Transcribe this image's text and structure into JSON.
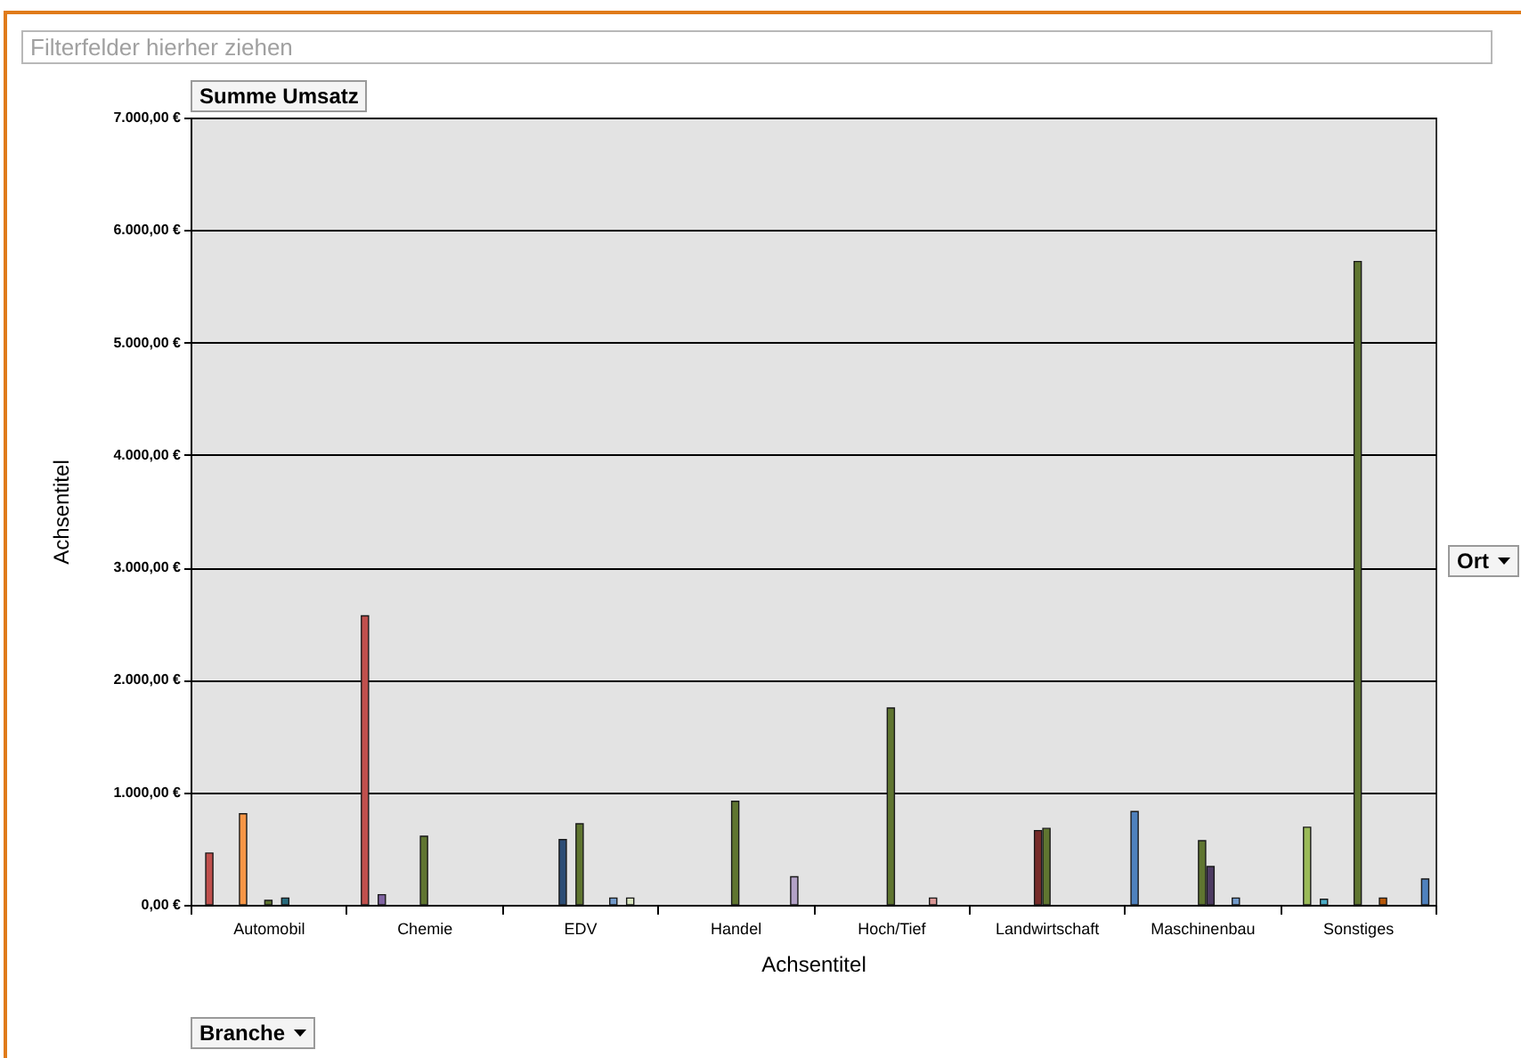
{
  "chart_data": {
    "type": "bar",
    "annotations": [
      "Filterfelder hierher ziehen",
      "Summe Umsatz",
      "Ort",
      "Branche"
    ],
    "xlabel": "Achsentitel",
    "ylabel": "Achsentitel",
    "categories": [
      "Automobil",
      "Chemie",
      "EDV",
      "Handel",
      "Hoch/Tief",
      "Landwirtschaft",
      "Maschinenbau",
      "Sonstiges"
    ],
    "series": [
      {
        "color": "#4f81bd",
        "values": [
          null,
          null,
          null,
          null,
          null,
          null,
          830,
          null
        ]
      },
      {
        "color": "#c0504d",
        "values": [
          460,
          2570,
          null,
          null,
          null,
          null,
          null,
          null
        ]
      },
      {
        "color": "#9bbb59",
        "values": [
          null,
          null,
          null,
          null,
          null,
          null,
          null,
          690
        ]
      },
      {
        "color": "#8064a2",
        "values": [
          null,
          90,
          null,
          null,
          null,
          null,
          null,
          null
        ]
      },
      {
        "color": "#4bacc6",
        "values": [
          null,
          null,
          null,
          null,
          null,
          null,
          null,
          50
        ]
      },
      {
        "color": "#f79646",
        "values": [
          810,
          null,
          null,
          null,
          null,
          null,
          null,
          null
        ]
      },
      {
        "color": "#2c4d75",
        "values": [
          null,
          null,
          580,
          null,
          null,
          null,
          null,
          null
        ]
      },
      {
        "color": "#772c2a",
        "values": [
          null,
          null,
          null,
          null,
          null,
          660,
          null,
          null
        ]
      },
      {
        "color": "#5f7530",
        "values": [
          40,
          610,
          720,
          920,
          1750,
          680,
          570,
          5720
        ]
      },
      {
        "color": "#4d3b62",
        "values": [
          null,
          null,
          null,
          null,
          null,
          null,
          340,
          null
        ]
      },
      {
        "color": "#276a7c",
        "values": [
          60,
          null,
          null,
          null,
          null,
          null,
          null,
          null
        ]
      },
      {
        "color": "#b65708",
        "values": [
          null,
          null,
          null,
          null,
          null,
          null,
          null,
          60
        ]
      },
      {
        "color": "#729aca",
        "values": [
          null,
          null,
          60,
          null,
          null,
          null,
          60,
          null
        ]
      },
      {
        "color": "#d99694",
        "values": [
          null,
          null,
          null,
          null,
          60,
          null,
          null,
          null
        ]
      },
      {
        "color": "#d7e4bd",
        "values": [
          null,
          null,
          60,
          null,
          null,
          null,
          null,
          null
        ]
      },
      {
        "color": "#b3a2c7",
        "values": [
          null,
          null,
          null,
          250,
          null,
          null,
          null,
          null
        ]
      },
      {
        "color": "#4f81bd",
        "values": [
          null,
          null,
          null,
          null,
          null,
          null,
          null,
          230
        ]
      }
    ],
    "ylim": [
      0,
      7000
    ],
    "yticks": [
      {
        "value": 0,
        "label": "0,00 €"
      },
      {
        "value": 1000,
        "label": "1.000,00 €"
      },
      {
        "value": 2000,
        "label": "2.000,00 €"
      },
      {
        "value": 3000,
        "label": "3.000,00 €"
      },
      {
        "value": 4000,
        "label": "4.000,00 €"
      },
      {
        "value": 5000,
        "label": "5.000,00 €"
      },
      {
        "value": 6000,
        "label": "6.000,00 €"
      },
      {
        "value": 7000,
        "label": "7.000,00 €"
      }
    ],
    "grid": "y",
    "legend": false
  }
}
